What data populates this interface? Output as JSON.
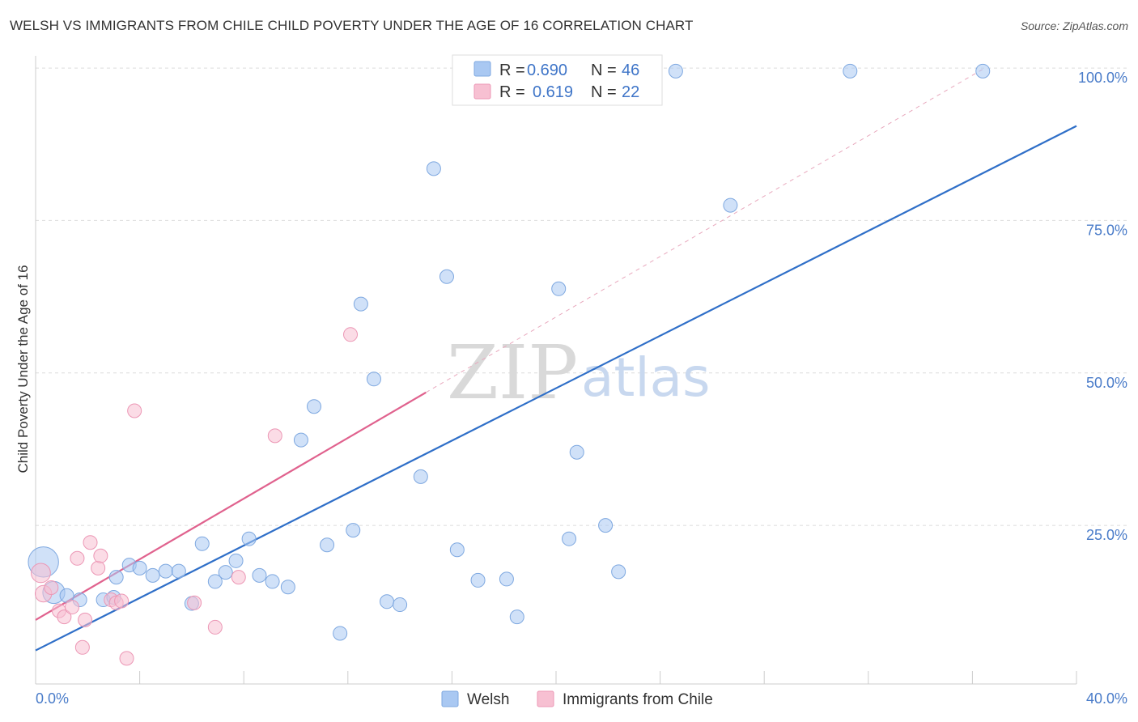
{
  "title": "WELSH VS IMMIGRANTS FROM CHILE CHILD POVERTY UNDER THE AGE OF 16 CORRELATION CHART",
  "source": "Source: ZipAtlas.com",
  "watermark": {
    "zip": "ZIP",
    "atlas": "atlas"
  },
  "chart_data": {
    "type": "scatter",
    "title": "WELSH VS IMMIGRANTS FROM CHILE CHILD POVERTY UNDER THE AGE OF 16 CORRELATION CHART",
    "xlabel": "",
    "ylabel": "Child Poverty Under the Age of 16",
    "xlim": [
      0,
      40
    ],
    "ylim": [
      -1,
      102
    ],
    "x_tick_labels": {
      "left": "0.0%",
      "right": "40.0%"
    },
    "y_ticks": [
      {
        "value": 25,
        "label": "25.0%"
      },
      {
        "value": 50,
        "label": "50.0%"
      },
      {
        "value": 75,
        "label": "75.0%"
      },
      {
        "value": 100,
        "label": "100.0%"
      }
    ],
    "grid": true,
    "legend": {
      "position": "top-center",
      "entries": [
        {
          "r_label": "R =",
          "r": "0.690",
          "n_label": "N =",
          "n": "46"
        },
        {
          "r_label": "R =",
          "r": "0.619",
          "n_label": "N =",
          "n": "22"
        }
      ]
    },
    "series": [
      {
        "name": "Welsh",
        "color": "#a9c8f2",
        "stroke": "#7ea8e0",
        "trend_color": "#2f6fc8",
        "trend": {
          "x0": 0,
          "y0": 4.5,
          "x1": 40,
          "y1": 90.5
        },
        "points": [
          [
            0.3,
            19.0,
            2.2
          ],
          [
            0.7,
            14.0,
            1.6
          ],
          [
            1.2,
            13.5,
            1
          ],
          [
            1.7,
            12.8,
            1
          ],
          [
            2.6,
            12.8,
            1
          ],
          [
            3.0,
            13.2,
            1
          ],
          [
            3.1,
            16.5,
            1
          ],
          [
            3.6,
            18.5,
            1
          ],
          [
            4.0,
            18.0,
            1
          ],
          [
            4.5,
            16.8,
            1
          ],
          [
            5.0,
            17.5,
            1
          ],
          [
            5.5,
            17.5,
            1
          ],
          [
            6.0,
            12.2,
            1
          ],
          [
            6.4,
            22.0,
            1
          ],
          [
            6.9,
            15.8,
            1
          ],
          [
            7.3,
            17.3,
            1
          ],
          [
            7.7,
            19.2,
            1
          ],
          [
            8.2,
            22.8,
            1
          ],
          [
            8.6,
            16.8,
            1
          ],
          [
            9.1,
            15.8,
            1
          ],
          [
            9.7,
            14.9,
            1
          ],
          [
            10.2,
            39.0,
            1
          ],
          [
            10.7,
            44.5,
            1
          ],
          [
            11.2,
            21.8,
            1
          ],
          [
            11.7,
            7.3,
            1
          ],
          [
            12.2,
            24.2,
            1
          ],
          [
            12.5,
            61.3,
            1
          ],
          [
            13.0,
            49.0,
            1
          ],
          [
            13.5,
            12.5,
            1
          ],
          [
            14.0,
            12.0,
            1
          ],
          [
            14.8,
            33.0,
            1
          ],
          [
            15.3,
            83.5,
            1
          ],
          [
            15.8,
            65.8,
            1
          ],
          [
            16.2,
            21.0,
            1
          ],
          [
            17.0,
            16.0,
            1
          ],
          [
            18.1,
            16.2,
            1
          ],
          [
            18.5,
            10.0,
            1
          ],
          [
            20.1,
            63.8,
            1
          ],
          [
            20.5,
            22.8,
            1
          ],
          [
            20.8,
            37.0,
            1
          ],
          [
            21.9,
            25.0,
            1
          ],
          [
            22.4,
            17.4,
            1
          ],
          [
            24.6,
            99.5,
            1
          ],
          [
            26.7,
            77.5,
            1
          ],
          [
            31.3,
            99.5,
            1
          ],
          [
            36.4,
            99.5,
            1
          ]
        ]
      },
      {
        "name": "Immigrants from Chile",
        "color": "#f7c0d2",
        "stroke": "#ec97b5",
        "trend_color": "#e0628e",
        "trend": {
          "x0": 0,
          "y0": 9.5,
          "x1": 15.0,
          "y1": 46.8
        },
        "trend_ext": {
          "x0": 15.0,
          "y0": 46.8,
          "x1": 36.4,
          "y1": 99.8
        },
        "points": [
          [
            0.2,
            17.2,
            1.4
          ],
          [
            0.3,
            13.8,
            1.2
          ],
          [
            0.6,
            14.8,
            1
          ],
          [
            0.9,
            11.0,
            1
          ],
          [
            1.1,
            10.0,
            1
          ],
          [
            1.4,
            11.6,
            1
          ],
          [
            1.6,
            19.6,
            1
          ],
          [
            1.8,
            5.0,
            1
          ],
          [
            1.9,
            9.5,
            1
          ],
          [
            2.1,
            22.2,
            1
          ],
          [
            2.4,
            18.0,
            1
          ],
          [
            2.5,
            20.0,
            1
          ],
          [
            2.9,
            12.8,
            1
          ],
          [
            3.1,
            12.3,
            1
          ],
          [
            3.3,
            12.6,
            1
          ],
          [
            3.5,
            3.2,
            1
          ],
          [
            3.8,
            43.8,
            1
          ],
          [
            6.1,
            12.3,
            1
          ],
          [
            6.9,
            8.3,
            1
          ],
          [
            7.8,
            16.5,
            1
          ],
          [
            9.2,
            39.7,
            1
          ],
          [
            12.1,
            56.3,
            1
          ]
        ]
      }
    ]
  }
}
